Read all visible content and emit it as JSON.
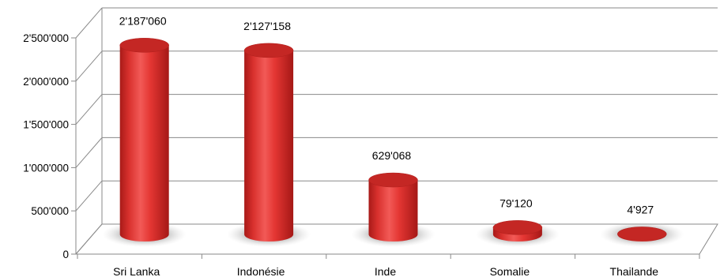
{
  "chart_data": {
    "type": "bar",
    "style": "3d-cylinder",
    "title": "",
    "xlabel": "",
    "ylabel": "",
    "categories": [
      "Sri Lanka",
      "Indonésie",
      "Inde",
      "Somalie",
      "Thailande"
    ],
    "values": [
      2187060,
      2127158,
      629068,
      79120,
      4927
    ],
    "data_labels": [
      "2'187'060",
      "2'127'158",
      "629'068",
      "79'120",
      "4'927"
    ],
    "yticks": [
      0,
      500000,
      1000000,
      1500000,
      2000000,
      2500000
    ],
    "ytick_labels": [
      "0",
      "500'000",
      "1'000'000",
      "1'500'000",
      "2'000'000",
      "2'500'000"
    ],
    "ylim": [
      0,
      2500000
    ],
    "grid": true,
    "legend": "none",
    "bar_color": "#e8302e"
  }
}
